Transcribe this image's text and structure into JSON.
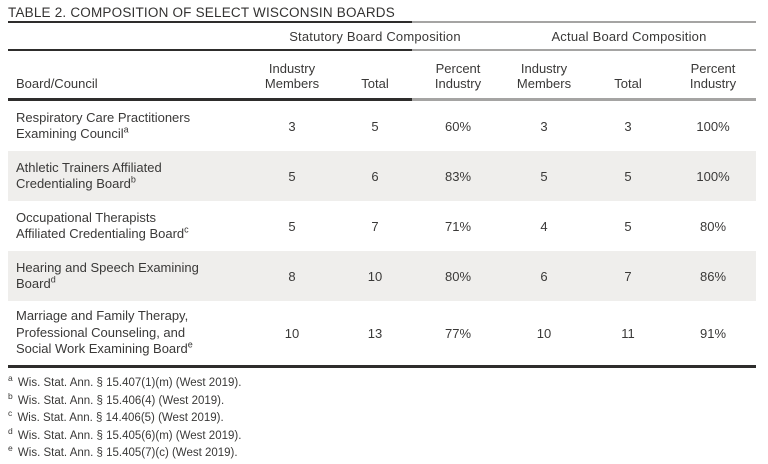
{
  "title": "TABLE 2. COMPOSITION OF SELECT WISCONSIN BOARDS",
  "table": {
    "row_header_label": "Board/Council",
    "groups": [
      "Statutory Board Composition",
      "Actual Board Composition"
    ],
    "sub_columns": [
      [
        "Industry",
        "Members"
      ],
      [
        "Total"
      ],
      [
        "Percent",
        "Industry"
      ],
      [
        "Industry",
        "Members"
      ],
      [
        "Total"
      ],
      [
        "Percent",
        "Industry"
      ]
    ],
    "rows": [
      {
        "name_lines": [
          "Respiratory Care Practitioners",
          "Examining Council"
        ],
        "footnote_marker": "a",
        "values": [
          "3",
          "5",
          "60%",
          "3",
          "3",
          "100%"
        ],
        "shaded": false
      },
      {
        "name_lines": [
          "Athletic Trainers Affiliated",
          "Credentialing Board"
        ],
        "footnote_marker": "b",
        "values": [
          "5",
          "6",
          "83%",
          "5",
          "5",
          "100%"
        ],
        "shaded": true
      },
      {
        "name_lines": [
          "Occupational Therapists",
          "Affiliated Credentialing Board"
        ],
        "footnote_marker": "c",
        "values": [
          "5",
          "7",
          "71%",
          "4",
          "5",
          "80%"
        ],
        "shaded": false
      },
      {
        "name_lines": [
          "Hearing and Speech Examining",
          "Board"
        ],
        "footnote_marker": "d",
        "values": [
          "8",
          "10",
          "80%",
          "6",
          "7",
          "86%"
        ],
        "shaded": true
      },
      {
        "name_lines": [
          "Marriage and Family Therapy,",
          "Professional Counseling, and",
          "Social Work Examining Board"
        ],
        "footnote_marker": "e",
        "values": [
          "10",
          "13",
          "77%",
          "10",
          "11",
          "91%"
        ],
        "shaded": false
      }
    ]
  },
  "footnotes": [
    {
      "marker": "a",
      "text": "Wis. Stat. Ann. § 15.407(1)(m) (West 2019)."
    },
    {
      "marker": "b",
      "text": "Wis. Stat. Ann. § 15.406(4) (West 2019)."
    },
    {
      "marker": "c",
      "text": "Wis. Stat. Ann. § 14.406(5) (West 2019)."
    },
    {
      "marker": "d",
      "text": "Wis. Stat. Ann. § 15.405(6)(m) (West 2019)."
    },
    {
      "marker": "e",
      "text": "Wis. Stat. Ann. § 15.405(7)(c) (West 2019)."
    }
  ],
  "colors": {
    "text": "#3a3938",
    "rule_dark": "#2e2d2c",
    "rule_light": "#a5a4a3",
    "row_shade": "#efeeec",
    "background": "#ffffff"
  }
}
